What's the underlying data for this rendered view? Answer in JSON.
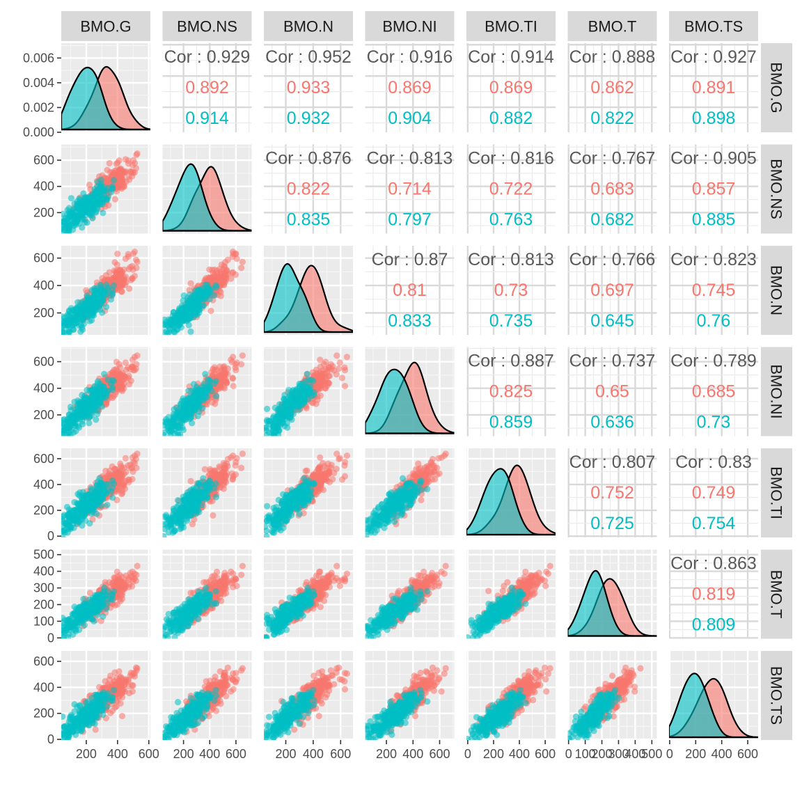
{
  "chart_data": {
    "type": "scatter-matrix",
    "variables": [
      "BMO.G",
      "BMO.NS",
      "BMO.N",
      "BMO.NI",
      "BMO.TI",
      "BMO.T",
      "BMO.TS"
    ],
    "colors": {
      "group_a": "#F8766D",
      "group_b": "#00BFC4",
      "overall": "#595959",
      "panel_bg": "#EBEBEB",
      "strip_bg": "#D9D9D9"
    },
    "correlation_prefix": "Cor : ",
    "grid": true,
    "diag_axis": {
      "ylim": [
        0,
        0.0072
      ],
      "ticks": [
        0,
        0.002,
        0.004,
        0.006
      ],
      "tick_labels": [
        "0.000",
        "0.002",
        "0.004",
        "0.006"
      ]
    },
    "axes": {
      "BMO.G": {
        "lim": [
          40,
          610
        ],
        "ticks": [
          200,
          400,
          600
        ],
        "tick_labels": [
          "200",
          "400",
          "600"
        ]
      },
      "BMO.NS": {
        "lim": [
          40,
          720
        ],
        "ticks": [
          200,
          400,
          600
        ],
        "tick_labels": [
          "200",
          "400",
          "600"
        ]
      },
      "BMO.N": {
        "lim": [
          40,
          690
        ],
        "ticks": [
          200,
          400,
          600
        ],
        "tick_labels": [
          "200",
          "400",
          "600"
        ]
      },
      "BMO.NI": {
        "lim": [
          40,
          710
        ],
        "ticks": [
          200,
          400,
          600
        ],
        "tick_labels": [
          "200",
          "400",
          "600"
        ]
      },
      "BMO.TI": {
        "lim": [
          -10,
          680
        ],
        "ticks": [
          0,
          200,
          400,
          600
        ],
        "tick_labels": [
          "0",
          "200",
          "400",
          "600"
        ]
      },
      "BMO.T": {
        "lim": [
          -5,
          530
        ],
        "ticks": [
          0,
          100,
          200,
          300,
          400,
          500
        ],
        "tick_labels": [
          "0",
          "100",
          "200",
          "300",
          "400",
          "500"
        ]
      },
      "BMO.TS": {
        "lim": [
          -5,
          680
        ],
        "ticks": [
          0,
          200,
          400,
          600
        ],
        "tick_labels": [
          "0",
          "200",
          "400",
          "600"
        ]
      }
    },
    "correlations": [
      {
        "row": "BMO.G",
        "col": "BMO.NS",
        "overall": "Cor : 0.929",
        "group_a": "0.892",
        "group_b": "0.914"
      },
      {
        "row": "BMO.G",
        "col": "BMO.N",
        "overall": "Cor : 0.952",
        "group_a": "0.933",
        "group_b": "0.932"
      },
      {
        "row": "BMO.G",
        "col": "BMO.NI",
        "overall": "Cor : 0.916",
        "group_a": "0.869",
        "group_b": "0.904"
      },
      {
        "row": "BMO.G",
        "col": "BMO.TI",
        "overall": "Cor : 0.914",
        "group_a": "0.869",
        "group_b": "0.882"
      },
      {
        "row": "BMO.G",
        "col": "BMO.T",
        "overall": "Cor : 0.888",
        "group_a": "0.862",
        "group_b": "0.822"
      },
      {
        "row": "BMO.G",
        "col": "BMO.TS",
        "overall": "Cor : 0.927",
        "group_a": "0.891",
        "group_b": "0.898"
      },
      {
        "row": "BMO.NS",
        "col": "BMO.N",
        "overall": "Cor : 0.876",
        "group_a": "0.822",
        "group_b": "0.835"
      },
      {
        "row": "BMO.NS",
        "col": "BMO.NI",
        "overall": "Cor : 0.813",
        "group_a": "0.714",
        "group_b": "0.797"
      },
      {
        "row": "BMO.NS",
        "col": "BMO.TI",
        "overall": "Cor : 0.816",
        "group_a": "0.722",
        "group_b": "0.763"
      },
      {
        "row": "BMO.NS",
        "col": "BMO.T",
        "overall": "Cor : 0.767",
        "group_a": "0.683",
        "group_b": "0.682"
      },
      {
        "row": "BMO.NS",
        "col": "BMO.TS",
        "overall": "Cor : 0.905",
        "group_a": "0.857",
        "group_b": "0.885"
      },
      {
        "row": "BMO.N",
        "col": "BMO.NI",
        "overall": "Cor : 0.87",
        "group_a": "0.81",
        "group_b": "0.833"
      },
      {
        "row": "BMO.N",
        "col": "BMO.TI",
        "overall": "Cor : 0.813",
        "group_a": "0.73",
        "group_b": "0.735"
      },
      {
        "row": "BMO.N",
        "col": "BMO.T",
        "overall": "Cor : 0.766",
        "group_a": "0.697",
        "group_b": "0.645"
      },
      {
        "row": "BMO.N",
        "col": "BMO.TS",
        "overall": "Cor : 0.823",
        "group_a": "0.745",
        "group_b": "0.76"
      },
      {
        "row": "BMO.NI",
        "col": "BMO.TI",
        "overall": "Cor : 0.887",
        "group_a": "0.825",
        "group_b": "0.859"
      },
      {
        "row": "BMO.NI",
        "col": "BMO.T",
        "overall": "Cor : 0.737",
        "group_a": "0.65",
        "group_b": "0.636"
      },
      {
        "row": "BMO.NI",
        "col": "BMO.TS",
        "overall": "Cor : 0.789",
        "group_a": "0.685",
        "group_b": "0.73"
      },
      {
        "row": "BMO.TI",
        "col": "BMO.T",
        "overall": "Cor : 0.807",
        "group_a": "0.752",
        "group_b": "0.725"
      },
      {
        "row": "BMO.TI",
        "col": "BMO.TS",
        "overall": "Cor : 0.83",
        "group_a": "0.749",
        "group_b": "0.754"
      },
      {
        "row": "BMO.T",
        "col": "BMO.TS",
        "overall": "Cor : 0.863",
        "group_a": "0.819",
        "group_b": "0.809"
      }
    ],
    "group_distributions": {
      "group_a": {
        "BMO.G": {
          "mean": 340,
          "sd": 85
        },
        "BMO.NS": {
          "mean": 400,
          "sd": 95
        },
        "BMO.N": {
          "mean": 380,
          "sd": 95
        },
        "BMO.NI": {
          "mean": 400,
          "sd": 95
        },
        "BMO.TI": {
          "mean": 380,
          "sd": 105
        },
        "BMO.T": {
          "mean": 250,
          "sd": 70
        },
        "BMO.TS": {
          "mean": 320,
          "sd": 105
        }
      },
      "group_b": {
        "BMO.G": {
          "mean": 210,
          "sd": 75
        },
        "BMO.NS": {
          "mean": 255,
          "sd": 85
        },
        "BMO.N": {
          "mean": 240,
          "sd": 85
        },
        "BMO.NI": {
          "mean": 270,
          "sd": 95
        },
        "BMO.TI": {
          "mean": 250,
          "sd": 95
        },
        "BMO.T": {
          "mean": 160,
          "sd": 60
        },
        "BMO.TS": {
          "mean": 200,
          "sd": 85
        }
      }
    }
  }
}
